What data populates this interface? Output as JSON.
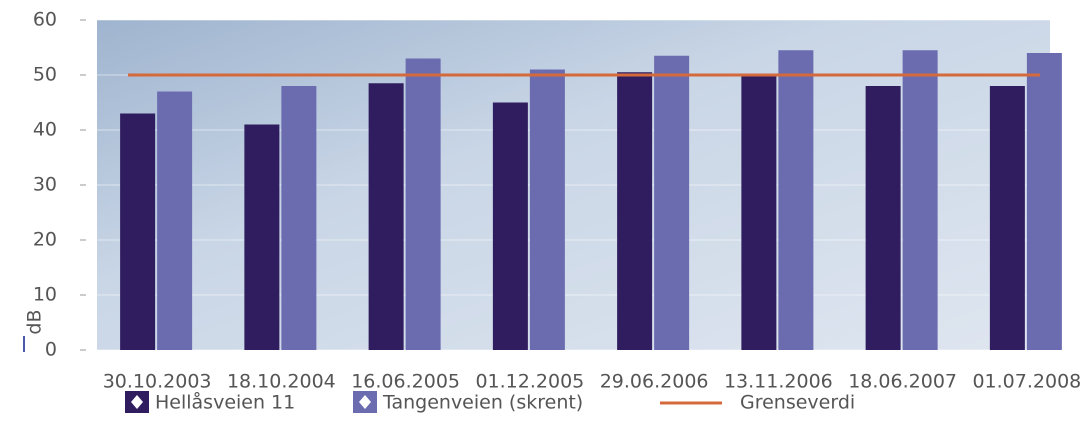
{
  "chart_data": {
    "type": "bar",
    "y_label": "dB",
    "categories": [
      "30.10.2003",
      "18.10.2004",
      "16.06.2005",
      "01.12.2005",
      "29.06.2006",
      "13.11.2006",
      "18.06.2007",
      "01.07.2008"
    ],
    "series": [
      {
        "name": "Hellåsveien 11",
        "color": "#2f1d5f",
        "values": [
          43,
          41,
          48.5,
          45,
          50.5,
          50,
          48,
          48
        ]
      },
      {
        "name": "Tangenveien (skrent)",
        "color": "#6b6bb0",
        "values": [
          47,
          48,
          53,
          51,
          53.5,
          54.5,
          54.5,
          54
        ]
      }
    ],
    "limit": {
      "name": "Grenseverdi",
      "value": 50,
      "color": "#d46a3c"
    },
    "ylim": [
      0,
      60
    ],
    "yticks": [
      0,
      10,
      20,
      30,
      40,
      50,
      60
    ],
    "grid": true
  }
}
